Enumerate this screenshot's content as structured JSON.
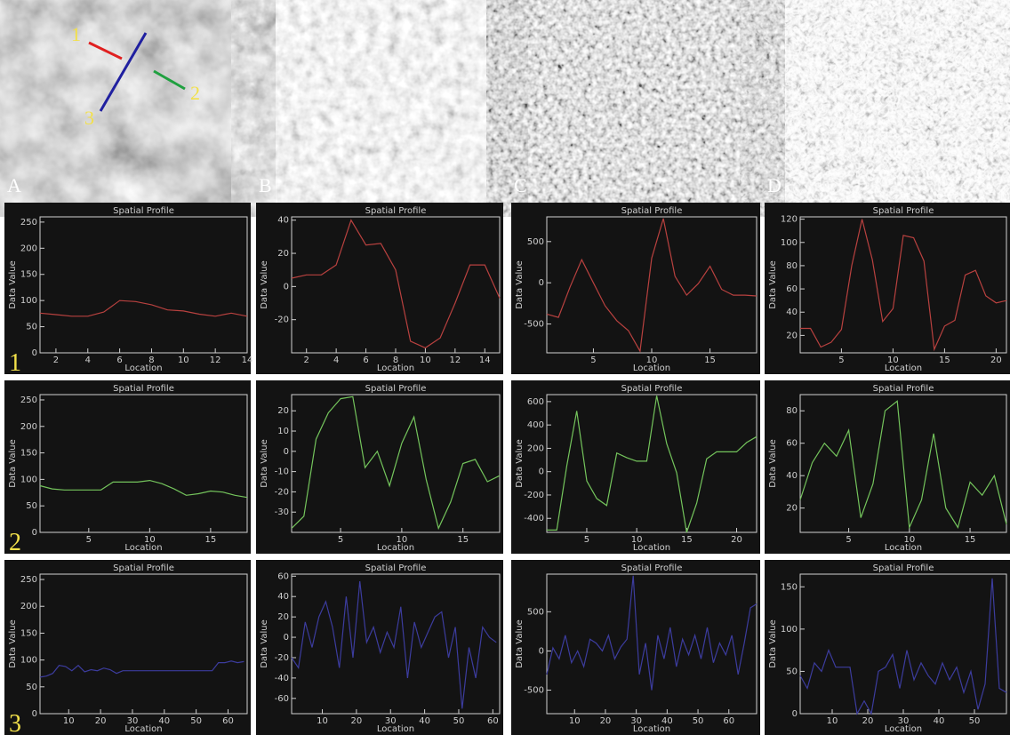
{
  "images": [
    {
      "label": "A"
    },
    {
      "label": "B"
    },
    {
      "label": "C"
    },
    {
      "label": "D"
    }
  ],
  "line_labels": [
    "1",
    "2",
    "3"
  ],
  "row_labels": [
    "1",
    "2",
    "3"
  ],
  "chart_data": [
    {
      "type": "line",
      "title": "Spatial Profile",
      "xlabel": "Location",
      "ylabel": "Data Value",
      "color": "#b8413f",
      "x": [
        1,
        2,
        3,
        4,
        5,
        6,
        7,
        8,
        9,
        10,
        11,
        12,
        13,
        14
      ],
      "values": [
        76,
        73,
        70,
        70,
        78,
        100,
        98,
        92,
        82,
        80,
        74,
        70,
        76,
        70
      ],
      "xlim": [
        1,
        14
      ],
      "xticks": [
        2,
        4,
        6,
        8,
        10,
        12,
        14
      ],
      "ylim": [
        0,
        260
      ],
      "yticks": [
        0,
        50,
        100,
        150,
        200,
        250
      ]
    },
    {
      "type": "line",
      "title": "Spatial Profile",
      "xlabel": "Location",
      "ylabel": "Data Value",
      "color": "#b8413f",
      "x": [
        1,
        2,
        3,
        4,
        5,
        6,
        7,
        8,
        9,
        10,
        11,
        12,
        13,
        14,
        15
      ],
      "values": [
        5,
        7,
        7,
        13,
        40,
        25,
        26,
        10,
        -33,
        -37,
        -31,
        -10,
        13,
        13,
        -7
      ],
      "xlim": [
        1,
        15
      ],
      "xticks": [
        2,
        4,
        6,
        8,
        10,
        12,
        14
      ],
      "ylim": [
        -40,
        42
      ],
      "yticks": [
        -20,
        0,
        20,
        40
      ]
    },
    {
      "type": "line",
      "title": "Spatial Profile",
      "xlabel": "Location",
      "ylabel": "Data Value",
      "color": "#b8413f",
      "x": [
        1,
        2,
        3,
        4,
        5,
        6,
        7,
        8,
        9,
        10,
        11,
        12,
        13,
        14,
        15,
        16,
        17,
        18,
        19
      ],
      "values": [
        -380,
        -420,
        -50,
        280,
        0,
        -280,
        -460,
        -580,
        -830,
        300,
        780,
        80,
        -150,
        -10,
        200,
        -80,
        -150,
        -150,
        -160
      ],
      "xlim": [
        1,
        19
      ],
      "xticks": [
        5,
        10,
        15
      ],
      "ylim": [
        -850,
        800
      ],
      "yticks": [
        -500,
        0,
        500
      ]
    },
    {
      "type": "line",
      "title": "Spatial Profile",
      "xlabel": "Location",
      "ylabel": "Data Value",
      "color": "#b8413f",
      "x": [
        1,
        2,
        3,
        4,
        5,
        6,
        7,
        8,
        9,
        10,
        11,
        12,
        13,
        14,
        15,
        16,
        17,
        18,
        19,
        20,
        21
      ],
      "values": [
        26,
        26,
        10,
        14,
        25,
        80,
        120,
        85,
        32,
        43,
        106,
        104,
        84,
        8,
        28,
        33,
        72,
        76,
        54,
        48,
        50
      ],
      "xlim": [
        1,
        21
      ],
      "xticks": [
        5,
        10,
        15,
        20
      ],
      "ylim": [
        5,
        122
      ],
      "yticks": [
        20,
        40,
        60,
        80,
        100,
        120
      ]
    },
    {
      "type": "line",
      "title": "Spatial Profile",
      "xlabel": "Location",
      "ylabel": "Data Value",
      "color": "#74c45c",
      "x": [
        1,
        2,
        3,
        4,
        5,
        6,
        7,
        8,
        9,
        10,
        11,
        12,
        13,
        14,
        15,
        16,
        17,
        18
      ],
      "values": [
        88,
        82,
        80,
        80,
        80,
        80,
        95,
        95,
        95,
        98,
        92,
        82,
        70,
        73,
        78,
        76,
        70,
        66
      ],
      "xlim": [
        1,
        18
      ],
      "xticks": [
        5,
        10,
        15
      ],
      "ylim": [
        0,
        260
      ],
      "yticks": [
        0,
        50,
        100,
        150,
        200,
        250
      ]
    },
    {
      "type": "line",
      "title": "Spatial Profile",
      "xlabel": "Location",
      "ylabel": "Data Value",
      "color": "#74c45c",
      "x": [
        1,
        2,
        3,
        4,
        5,
        6,
        7,
        8,
        9,
        10,
        11,
        12,
        13,
        14,
        15,
        16,
        17,
        18
      ],
      "values": [
        -38,
        -32,
        6,
        19,
        26,
        27,
        -8,
        0,
        -17,
        4,
        17,
        -14,
        -38,
        -25,
        -6,
        -4,
        -15,
        -12
      ],
      "xlim": [
        1,
        18
      ],
      "xticks": [
        5,
        10,
        15
      ],
      "ylim": [
        -40,
        28
      ],
      "yticks": [
        -30,
        -20,
        -10,
        0,
        10,
        20
      ]
    },
    {
      "type": "line",
      "title": "Spatial Profile",
      "xlabel": "Location",
      "ylabel": "Data Value",
      "color": "#74c45c",
      "x": [
        1,
        2,
        3,
        4,
        5,
        6,
        7,
        8,
        9,
        10,
        11,
        12,
        13,
        14,
        15,
        16,
        17,
        18,
        19,
        20,
        21,
        22
      ],
      "values": [
        -500,
        -500,
        50,
        520,
        -80,
        -230,
        -290,
        160,
        120,
        90,
        90,
        650,
        240,
        -10,
        -520,
        -270,
        110,
        170,
        170,
        170,
        250,
        300
      ],
      "xlim": [
        1,
        22
      ],
      "xticks": [
        5,
        10,
        15,
        20
      ],
      "ylim": [
        -520,
        660
      ],
      "yticks": [
        -400,
        -200,
        0,
        200,
        400,
        600
      ]
    },
    {
      "type": "line",
      "title": "Spatial Profile",
      "xlabel": "Location",
      "ylabel": "Data Value",
      "color": "#74c45c",
      "x": [
        1,
        2,
        3,
        4,
        5,
        6,
        7,
        8,
        9,
        10,
        11,
        12,
        13,
        14,
        15,
        16,
        17,
        18
      ],
      "values": [
        25,
        48,
        60,
        52,
        68,
        14,
        35,
        80,
        86,
        8,
        25,
        66,
        20,
        8,
        36,
        28,
        40,
        10
      ],
      "xlim": [
        1,
        18
      ],
      "xticks": [
        5,
        10,
        15
      ],
      "ylim": [
        5,
        90
      ],
      "yticks": [
        20,
        40,
        60,
        80
      ]
    },
    {
      "type": "line",
      "title": "Spatial Profile",
      "xlabel": "Location",
      "ylabel": "Data Value",
      "color": "#3c3c9e",
      "x": [
        1,
        3,
        5,
        7,
        9,
        11,
        13,
        15,
        17,
        19,
        21,
        23,
        25,
        27,
        29,
        31,
        33,
        35,
        37,
        39,
        41,
        43,
        45,
        47,
        49,
        51,
        53,
        55,
        57,
        59,
        61,
        63,
        65
      ],
      "values": [
        68,
        70,
        75,
        90,
        88,
        80,
        90,
        78,
        82,
        80,
        85,
        82,
        75,
        80,
        80,
        80,
        80,
        80,
        80,
        80,
        80,
        80,
        80,
        80,
        80,
        80,
        80,
        80,
        95,
        95,
        98,
        95,
        97
      ],
      "xlim": [
        1,
        66
      ],
      "xticks": [
        10,
        20,
        30,
        40,
        50,
        60
      ],
      "ylim": [
        0,
        260
      ],
      "yticks": [
        0,
        50,
        100,
        150,
        200,
        250
      ]
    },
    {
      "type": "line",
      "title": "Spatial Profile",
      "xlabel": "Location",
      "ylabel": "Data Value",
      "color": "#3c3c9e",
      "x": [
        1,
        3,
        5,
        7,
        9,
        11,
        13,
        15,
        17,
        19,
        21,
        23,
        25,
        27,
        29,
        31,
        33,
        35,
        37,
        39,
        41,
        43,
        45,
        47,
        49,
        51,
        53,
        55,
        57,
        59,
        61
      ],
      "values": [
        -20,
        -30,
        15,
        -10,
        20,
        35,
        10,
        -30,
        40,
        -20,
        55,
        -5,
        10,
        -15,
        5,
        -10,
        30,
        -40,
        15,
        -10,
        5,
        20,
        25,
        -20,
        10,
        -70,
        -10,
        -40,
        10,
        0,
        -5
      ],
      "xlim": [
        1,
        62
      ],
      "xticks": [
        10,
        20,
        30,
        40,
        50,
        60
      ],
      "ylim": [
        -75,
        62
      ],
      "yticks": [
        -60,
        -40,
        -20,
        0,
        20,
        40,
        60
      ]
    },
    {
      "type": "line",
      "title": "Spatial Profile",
      "xlabel": "Location",
      "ylabel": "Data Value",
      "color": "#3c3c9e",
      "x": [
        1,
        3,
        5,
        7,
        9,
        11,
        13,
        15,
        17,
        19,
        21,
        23,
        25,
        27,
        29,
        31,
        33,
        35,
        37,
        39,
        41,
        43,
        45,
        47,
        49,
        51,
        53,
        55,
        57,
        59,
        61,
        63,
        65,
        67,
        69
      ],
      "values": [
        -300,
        40,
        -100,
        200,
        -150,
        0,
        -200,
        150,
        100,
        0,
        200,
        -100,
        50,
        150,
        960,
        -300,
        100,
        -500,
        200,
        -100,
        300,
        -200,
        150,
        -50,
        200,
        -100,
        300,
        -150,
        100,
        -50,
        200,
        -300,
        100,
        550,
        600
      ],
      "xlim": [
        1,
        69
      ],
      "xticks": [
        10,
        20,
        30,
        40,
        50,
        60
      ],
      "ylim": [
        -800,
        980
      ],
      "yticks": [
        -500,
        0,
        500
      ]
    },
    {
      "type": "line",
      "title": "Spatial Profile",
      "xlabel": "Location",
      "ylabel": "Data Value",
      "color": "#3c3c9e",
      "x": [
        1,
        3,
        5,
        7,
        9,
        11,
        13,
        15,
        17,
        19,
        21,
        23,
        25,
        27,
        29,
        31,
        33,
        35,
        37,
        39,
        41,
        43,
        45,
        47,
        49,
        51,
        53,
        55,
        57,
        59
      ],
      "values": [
        45,
        30,
        60,
        50,
        75,
        55,
        55,
        55,
        0,
        15,
        0,
        50,
        55,
        70,
        30,
        75,
        40,
        60,
        45,
        35,
        60,
        40,
        55,
        25,
        50,
        5,
        35,
        160,
        30,
        25
      ],
      "xlim": [
        1,
        59
      ],
      "xticks": [
        10,
        20,
        30,
        40,
        50
      ],
      "ylim": [
        0,
        165
      ],
      "yticks": [
        0,
        50,
        100,
        150
      ]
    }
  ]
}
